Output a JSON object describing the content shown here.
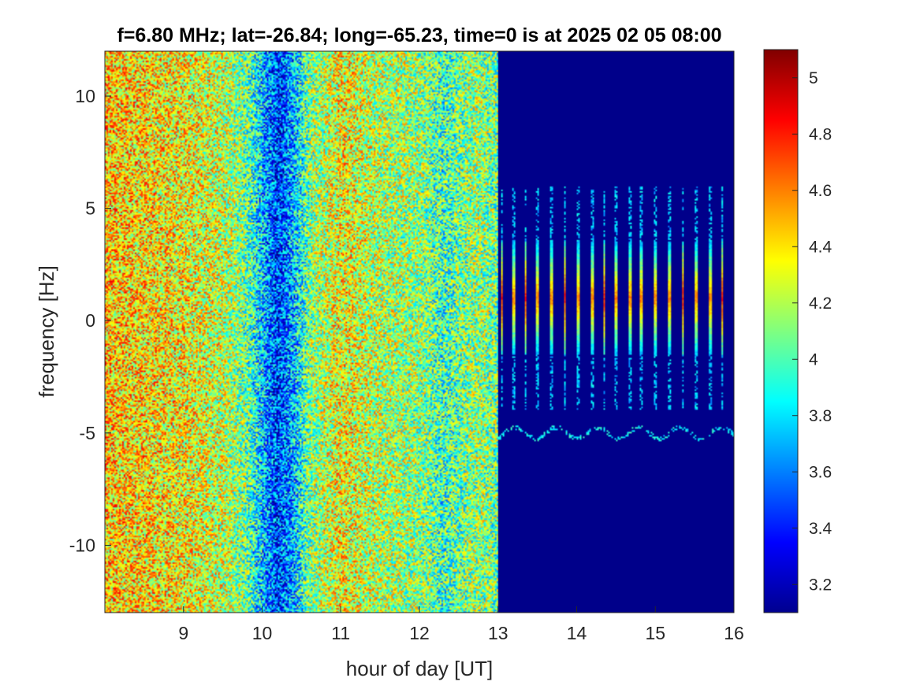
{
  "chart_data": {
    "type": "heatmap",
    "title": "f=6.80 MHz;  lat=-26.84; long=-65.23, time=0 is at 2025 02 05 08:00",
    "xlabel": "hour of day [UT]",
    "ylabel": "frequency [Hz]",
    "xlim": [
      8,
      16
    ],
    "ylim": [
      -13,
      12
    ],
    "xticks": [
      9,
      10,
      11,
      12,
      13,
      14,
      15,
      16
    ],
    "yticks": [
      -10,
      -5,
      0,
      5,
      10
    ],
    "clim": [
      3.1,
      5.1
    ],
    "colorbar_ticks": [
      3.2,
      3.4,
      3.6,
      3.8,
      4,
      4.2,
      4.4,
      4.6,
      4.8,
      5
    ],
    "colormap": "jet",
    "noise_level_by_hour": [
      {
        "x": 8.0,
        "value": 4.45
      },
      {
        "x": 8.5,
        "value": 4.4
      },
      {
        "x": 9.0,
        "value": 4.35
      },
      {
        "x": 9.5,
        "value": 4.25
      },
      {
        "x": 9.8,
        "value": 4.05
      },
      {
        "x": 10.2,
        "value": 3.45
      },
      {
        "x": 10.4,
        "value": 3.7
      },
      {
        "x": 10.6,
        "value": 4.1
      },
      {
        "x": 11.0,
        "value": 4.35
      },
      {
        "x": 11.5,
        "value": 4.2
      },
      {
        "x": 12.0,
        "value": 4.15
      },
      {
        "x": 12.3,
        "value": 3.95
      },
      {
        "x": 12.7,
        "value": 4.15
      },
      {
        "x": 13.0,
        "value": 4.05
      }
    ],
    "data_gap_after_hour": 13.0,
    "background_value": 3.12,
    "echo_traces_hour": [
      13.05,
      13.2,
      13.35,
      13.5,
      13.68,
      13.85,
      14.02,
      14.2,
      14.35,
      14.5,
      14.68,
      14.82,
      15.0,
      15.18,
      15.35,
      15.52,
      15.7,
      15.85
    ],
    "echo_trace": {
      "y_center": 1.0,
      "y_half_width": 2.5,
      "peak_value": 4.8
    },
    "doppler_trace": {
      "y": -5.0,
      "x_start": 13.0,
      "x_end": 16.0
    }
  }
}
